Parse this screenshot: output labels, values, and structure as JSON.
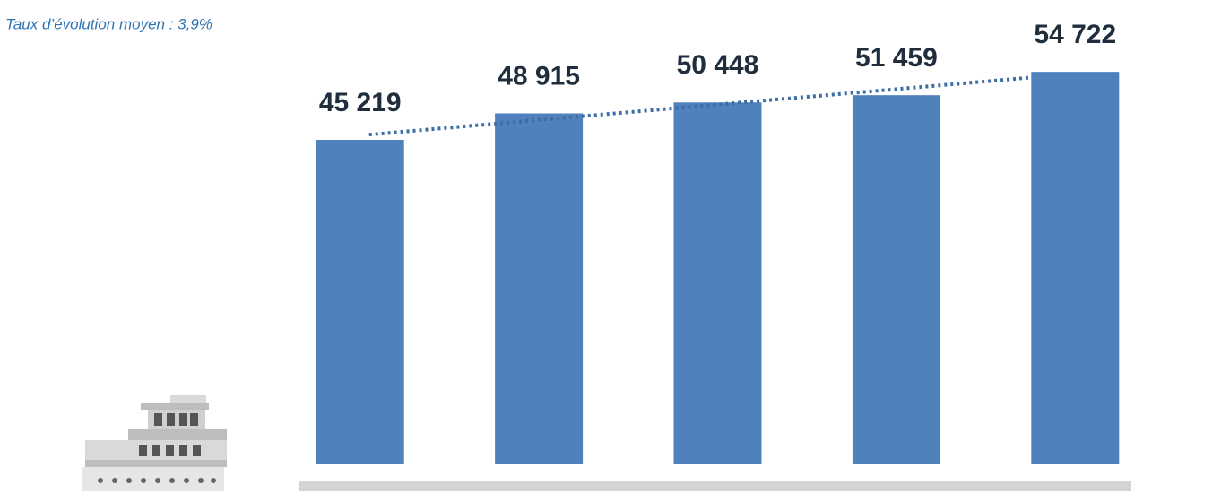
{
  "chart_data": {
    "type": "bar",
    "subtitle": "Taux d’évolution moyen : 3,9%",
    "categories": [
      null,
      null,
      null,
      null,
      null
    ],
    "values": [
      45219,
      48915,
      50448,
      51459,
      54722
    ],
    "value_labels": [
      "45 219",
      "48 915",
      "50 448",
      "51 459",
      "54 722"
    ],
    "color": "#4f81bd",
    "ylim": [
      0,
      60000
    ],
    "trendline": true,
    "trendline_color": "#3a6ea5"
  }
}
